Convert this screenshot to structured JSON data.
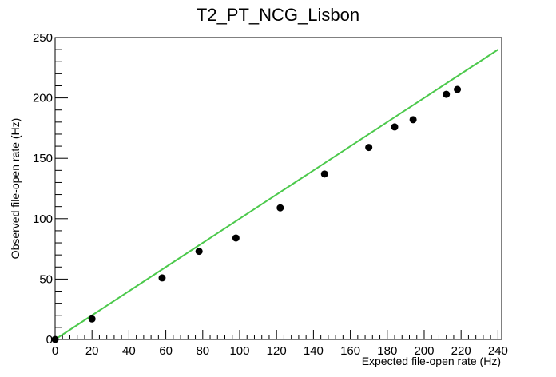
{
  "chart_data": {
    "type": "scatter",
    "title": "T2_PT_NCG_Lisbon",
    "xlabel": "Expected file-open rate (Hz)",
    "ylabel": "Observed file-open rate (Hz)",
    "xlim": [
      0,
      242
    ],
    "ylim": [
      0,
      250
    ],
    "x_ticks": [
      0,
      20,
      40,
      60,
      80,
      100,
      120,
      140,
      160,
      180,
      200,
      220,
      240
    ],
    "y_ticks": [
      0,
      50,
      100,
      150,
      200,
      250
    ],
    "grid": false,
    "legend": "none",
    "series": [
      {
        "kind": "points",
        "color": "#000000",
        "x": [
          0,
          20,
          58,
          78,
          98,
          122,
          146,
          170,
          184,
          194,
          212,
          218
        ],
        "y": [
          0,
          17,
          51,
          73,
          84,
          109,
          137,
          159,
          176,
          182,
          203,
          207
        ]
      },
      {
        "kind": "line",
        "color": "#4cc94c",
        "x": [
          0,
          240
        ],
        "y": [
          0,
          240
        ]
      }
    ]
  }
}
